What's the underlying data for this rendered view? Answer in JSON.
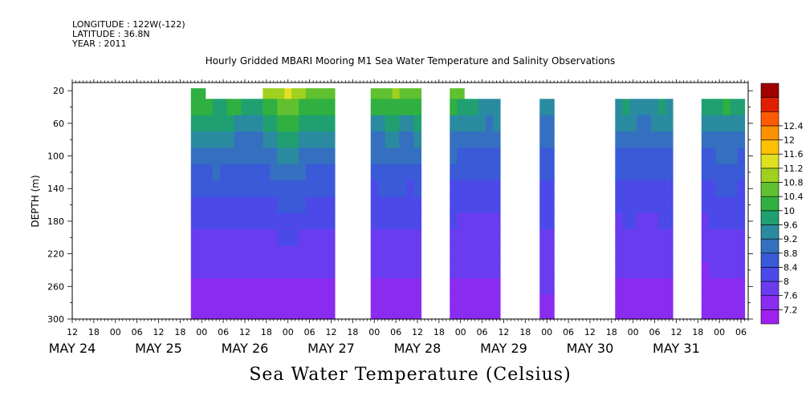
{
  "header": {
    "longitude": "LONGITUDE : 122W(-122)",
    "latitude": "LATITUDE : 36.8N",
    "year": "YEAR : 2011"
  },
  "chart_data": {
    "type": "heatmap",
    "title": "Hourly Gridded MBARI Mooring M1 Sea Water Temperature and Salinity Observations",
    "xlabel": "Sea Water Temperature (Celsius)",
    "ylabel": "DEPTH (m)",
    "x_hour_range": [
      -12,
      176
    ],
    "x_note": "x values are hours relative to 2011-05-24 00:00",
    "ylim": [
      300,
      10
    ],
    "y_ticks": [
      20,
      60,
      100,
      140,
      180,
      220,
      260,
      300
    ],
    "x_hour_ticks": [
      "12",
      "18",
      "00",
      "06",
      "12",
      "18",
      "00",
      "06",
      "12",
      "18",
      "00",
      "06",
      "12",
      "18",
      "00",
      "06",
      "12",
      "18",
      "00",
      "06",
      "12",
      "18",
      "00",
      "06",
      "12",
      "18",
      "00",
      "06",
      "12",
      "18",
      "00",
      "06"
    ],
    "day_labels": [
      "MAY 24",
      "MAY 25",
      "MAY 26",
      "MAY 27",
      "MAY 28",
      "MAY 29",
      "MAY 30",
      "MAY 31"
    ],
    "colorbar": {
      "levels": [
        7.2,
        7.6,
        8,
        8.4,
        8.8,
        9.2,
        9.6,
        10,
        10.4,
        10.8,
        11.2,
        11.6,
        12,
        12.4
      ],
      "colors": [
        "#a020f0",
        "#8a2cf0",
        "#6a3cf0",
        "#4b49e8",
        "#3a5ad8",
        "#3570c0",
        "#2a8aa0",
        "#20a070",
        "#30b040",
        "#60c030",
        "#a0d020",
        "#e0e020",
        "#ffc000",
        "#ff9000",
        "#ff5a00",
        "#e02000",
        "#a00000"
      ]
    },
    "profiles": [
      {
        "hours": [
          22,
          24,
          26,
          28,
          30,
          32,
          34,
          36,
          38,
          40
        ],
        "depths": [
          20,
          40,
          60,
          80,
          100,
          120,
          140,
          160,
          180,
          200,
          220,
          240,
          260,
          280,
          300
        ],
        "temps": [
          [
            10.3,
            10.1,
            9.6,
            9.2,
            8.9,
            8.6,
            8.4,
            8.2,
            8.0,
            7.9,
            7.7,
            7.6,
            7.5,
            7.4,
            7.3
          ],
          [
            10.3,
            10.1,
            9.7,
            9.3,
            8.9,
            8.7,
            8.5,
            8.3,
            8.0,
            7.9,
            7.8,
            7.6,
            7.5,
            7.4,
            7.3
          ],
          [
            null,
            10.0,
            9.7,
            9.3,
            9.0,
            8.7,
            8.5,
            8.3,
            8.1,
            7.9,
            7.8,
            7.6,
            7.5,
            7.4,
            7.3
          ],
          [
            null,
            9.9,
            9.6,
            9.3,
            9.0,
            8.8,
            8.6,
            8.3,
            8.1,
            7.9,
            7.8,
            7.6,
            7.5,
            7.3,
            7.2
          ],
          [
            null,
            9.9,
            9.6,
            9.2,
            8.9,
            8.7,
            8.5,
            8.2,
            8.0,
            7.9,
            7.7,
            7.6,
            7.5,
            7.4,
            7.3
          ],
          [
            null,
            10.0,
            9.6,
            9.2,
            8.9,
            8.6,
            8.4,
            8.2,
            8.0,
            7.9,
            7.7,
            7.6,
            7.5,
            7.4,
            7.3
          ],
          [
            null,
            10.0,
            9.5,
            9.1,
            8.8,
            8.6,
            8.4,
            8.2,
            8.0,
            7.8,
            7.7,
            7.6,
            7.5,
            7.4,
            7.3
          ],
          [
            null,
            9.9,
            9.5,
            9.1,
            8.8,
            8.6,
            8.4,
            8.2,
            8.0,
            7.8,
            7.7,
            7.6,
            7.5,
            7.4,
            7.3
          ],
          [
            null,
            9.9,
            9.5,
            9.1,
            8.8,
            8.6,
            8.4,
            8.2,
            8.0,
            7.9,
            7.7,
            7.6,
            7.5,
            7.4,
            7.3
          ],
          [
            null,
            9.9,
            9.5,
            9.1,
            8.8,
            8.6,
            8.4,
            8.2,
            8.0,
            7.9,
            7.7,
            7.6,
            7.5,
            7.4,
            7.3
          ]
        ]
      },
      {
        "hours": [
          42,
          44,
          46,
          48,
          50,
          52,
          54,
          56,
          58,
          60
        ],
        "depths": [
          20,
          40,
          60,
          80,
          100,
          120,
          140,
          160,
          180,
          200,
          220,
          240,
          260,
          280,
          300
        ],
        "temps": [
          [
            10.8,
            10.2,
            9.7,
            9.3,
            9.0,
            8.7,
            8.5,
            8.3,
            8.1,
            7.9,
            7.7,
            7.6,
            7.5,
            7.4,
            7.3
          ],
          [
            10.9,
            10.3,
            9.8,
            9.4,
            9.1,
            8.8,
            8.6,
            8.3,
            8.1,
            7.9,
            7.8,
            7.6,
            7.5,
            7.4,
            7.3
          ],
          [
            11.0,
            10.5,
            10.0,
            9.6,
            9.2,
            8.9,
            8.6,
            8.4,
            8.1,
            8.0,
            7.8,
            7.6,
            7.5,
            7.4,
            7.3
          ],
          [
            11.2,
            10.7,
            10.2,
            9.8,
            9.4,
            9.0,
            8.7,
            8.5,
            8.2,
            8.0,
            7.8,
            7.7,
            7.5,
            7.4,
            7.2
          ],
          [
            11.0,
            10.6,
            10.1,
            9.7,
            9.3,
            9.0,
            8.7,
            8.4,
            8.2,
            8.0,
            7.8,
            7.7,
            7.5,
            7.4,
            7.3
          ],
          [
            10.8,
            10.3,
            9.9,
            9.5,
            9.1,
            8.8,
            8.6,
            8.4,
            8.1,
            7.9,
            7.8,
            7.6,
            7.5,
            7.4,
            7.3
          ],
          [
            10.6,
            10.1,
            9.7,
            9.3,
            9.0,
            8.7,
            8.5,
            8.3,
            8.1,
            7.9,
            7.7,
            7.6,
            7.5,
            7.4,
            7.3
          ],
          [
            10.6,
            10.1,
            9.6,
            9.2,
            8.9,
            8.7,
            8.5,
            8.3,
            8.1,
            7.9,
            7.7,
            7.6,
            7.5,
            7.4,
            7.3
          ],
          [
            10.7,
            10.1,
            9.6,
            9.2,
            8.9,
            8.7,
            8.5,
            8.3,
            8.1,
            7.9,
            7.7,
            7.6,
            7.5,
            7.4,
            7.3
          ],
          [
            10.7,
            10.2,
            9.7,
            9.3,
            9.0,
            8.7,
            8.5,
            8.3,
            8.1,
            7.9,
            7.7,
            7.6,
            7.5,
            7.4,
            7.3
          ]
        ]
      },
      {
        "hours": [
          72,
          74,
          76,
          78,
          80,
          82,
          84
        ],
        "depths": [
          20,
          40,
          60,
          80,
          100,
          120,
          140,
          160,
          180,
          200,
          220,
          240,
          260,
          280,
          300
        ],
        "temps": [
          [
            10.6,
            10.0,
            9.5,
            9.1,
            8.8,
            8.5,
            8.3,
            8.1,
            8.0,
            7.8,
            7.7,
            7.6,
            7.5,
            7.4,
            7.3
          ],
          [
            10.6,
            10.0,
            9.5,
            9.1,
            8.8,
            8.6,
            8.4,
            8.2,
            8.0,
            7.9,
            7.7,
            7.6,
            7.5,
            7.4,
            7.3
          ],
          [
            10.7,
            10.1,
            9.6,
            9.2,
            8.9,
            8.6,
            8.4,
            8.2,
            8.0,
            7.9,
            7.7,
            7.6,
            7.5,
            7.4,
            7.3
          ],
          [
            10.8,
            10.1,
            9.6,
            9.2,
            8.9,
            8.6,
            8.4,
            8.2,
            8.0,
            7.9,
            7.7,
            7.6,
            7.5,
            7.4,
            7.3
          ],
          [
            10.7,
            10.0,
            9.5,
            9.1,
            8.8,
            8.6,
            8.4,
            8.2,
            8.0,
            7.8,
            7.7,
            7.6,
            7.5,
            7.4,
            7.3
          ],
          [
            10.6,
            10.0,
            9.5,
            9.1,
            8.8,
            8.5,
            8.3,
            8.1,
            8.0,
            7.8,
            7.7,
            7.6,
            7.5,
            7.4,
            7.3
          ],
          [
            10.7,
            10.1,
            9.6,
            9.2,
            8.9,
            8.6,
            8.4,
            8.2,
            8.0,
            7.9,
            7.7,
            7.6,
            7.5,
            7.4,
            7.3
          ]
        ]
      },
      {
        "hours": [
          94,
          96,
          98,
          100,
          102,
          104,
          106
        ],
        "depths": [
          20,
          40,
          60,
          80,
          100,
          120,
          140,
          160,
          180,
          200,
          220,
          240,
          260,
          280,
          300
        ],
        "temps": [
          [
            10.6,
            10.0,
            9.5,
            9.1,
            8.8,
            8.5,
            8.3,
            8.1,
            8.0,
            7.8,
            7.7,
            7.6,
            7.5,
            7.4,
            7.3
          ],
          [
            10.5,
            9.9,
            9.4,
            9.0,
            8.7,
            8.5,
            8.3,
            8.1,
            7.9,
            7.8,
            7.7,
            7.6,
            7.5,
            7.4,
            7.3
          ],
          [
            null,
            9.7,
            9.3,
            9.0,
            8.7,
            8.5,
            8.3,
            8.1,
            7.9,
            7.8,
            7.7,
            7.6,
            7.5,
            7.4,
            7.3
          ],
          [
            null,
            9.6,
            9.2,
            8.9,
            8.7,
            8.5,
            8.3,
            8.1,
            7.9,
            7.8,
            7.7,
            7.6,
            7.5,
            7.4,
            7.2
          ],
          [
            null,
            9.5,
            9.2,
            8.9,
            8.7,
            8.5,
            8.3,
            8.1,
            7.9,
            7.8,
            7.7,
            7.6,
            7.5,
            7.4,
            7.3
          ],
          [
            null,
            9.5,
            9.1,
            8.9,
            8.7,
            8.5,
            8.3,
            8.1,
            7.9,
            7.8,
            7.7,
            7.6,
            7.5,
            7.4,
            7.3
          ],
          [
            null,
            9.5,
            9.2,
            8.9,
            8.7,
            8.5,
            8.3,
            8.1,
            7.9,
            7.8,
            7.7,
            7.6,
            7.5,
            7.4,
            7.3
          ]
        ]
      },
      {
        "hours": [
          119,
          121
        ],
        "depths": [
          20,
          40,
          60,
          80,
          100,
          120,
          140,
          160,
          180,
          200,
          220,
          240,
          260,
          280,
          300
        ],
        "temps": [
          [
            null,
            9.4,
            9.1,
            8.8,
            8.6,
            8.4,
            8.3,
            8.1,
            8.0,
            7.9,
            7.8,
            7.7,
            7.6,
            7.4,
            7.3
          ],
          [
            null,
            9.4,
            9.1,
            8.8,
            8.6,
            8.4,
            8.3,
            8.1,
            8.0,
            7.9,
            7.8,
            7.7,
            7.6,
            7.4,
            7.3
          ]
        ]
      },
      {
        "hours": [
          140,
          142,
          144,
          146,
          148,
          150,
          152,
          154
        ],
        "depths": [
          20,
          40,
          60,
          80,
          100,
          120,
          140,
          160,
          180,
          200,
          220,
          240,
          260,
          280,
          300
        ],
        "temps": [
          [
            null,
            9.5,
            9.2,
            8.9,
            8.7,
            8.5,
            8.3,
            8.1,
            7.9,
            7.8,
            7.7,
            7.6,
            7.5,
            7.4,
            7.3
          ],
          [
            null,
            9.6,
            9.2,
            8.9,
            8.7,
            8.5,
            8.3,
            8.1,
            8.0,
            7.8,
            7.7,
            7.6,
            7.5,
            7.4,
            7.3
          ],
          [
            null,
            9.5,
            9.2,
            8.9,
            8.7,
            8.5,
            8.3,
            8.1,
            8.0,
            7.8,
            7.7,
            7.6,
            7.5,
            7.4,
            7.3
          ],
          [
            null,
            9.5,
            9.1,
            8.9,
            8.7,
            8.5,
            8.3,
            8.1,
            7.9,
            7.8,
            7.7,
            7.6,
            7.5,
            7.4,
            7.3
          ],
          [
            null,
            9.4,
            9.1,
            8.8,
            8.6,
            8.4,
            8.2,
            8.1,
            7.9,
            7.8,
            7.7,
            7.6,
            7.5,
            7.4,
            7.3
          ],
          [
            null,
            9.5,
            9.2,
            8.9,
            8.7,
            8.5,
            8.3,
            8.1,
            7.9,
            7.8,
            7.7,
            7.6,
            7.5,
            7.4,
            7.2
          ],
          [
            null,
            9.6,
            9.2,
            8.9,
            8.7,
            8.5,
            8.3,
            8.1,
            8.0,
            7.8,
            7.7,
            7.6,
            7.5,
            7.4,
            7.3
          ],
          [
            null,
            9.5,
            9.2,
            8.9,
            8.7,
            8.5,
            8.3,
            8.1,
            8.0,
            7.8,
            7.7,
            7.6,
            7.5,
            7.4,
            7.3
          ]
        ]
      },
      {
        "hours": [
          164,
          166,
          168,
          170,
          172,
          174
        ],
        "depths": [
          20,
          40,
          60,
          80,
          100,
          120,
          140,
          160,
          180,
          200,
          220,
          240,
          260,
          280,
          300
        ],
        "temps": [
          [
            null,
            9.6,
            9.2,
            8.9,
            8.7,
            8.5,
            8.3,
            8.1,
            7.9,
            7.8,
            7.6,
            7.5,
            7.4,
            7.3,
            7.3
          ],
          [
            null,
            9.7,
            9.3,
            9.0,
            8.7,
            8.5,
            8.3,
            8.1,
            8.0,
            7.8,
            7.7,
            7.6,
            7.5,
            7.4,
            7.3
          ],
          [
            null,
            9.8,
            9.4,
            9.0,
            8.8,
            8.6,
            8.4,
            8.2,
            8.0,
            7.9,
            7.7,
            7.6,
            7.5,
            7.4,
            7.3
          ],
          [
            null,
            10.0,
            9.5,
            9.1,
            8.8,
            8.6,
            8.4,
            8.2,
            8.0,
            7.9,
            7.7,
            7.6,
            7.5,
            7.4,
            7.3
          ],
          [
            null,
            9.8,
            9.4,
            9.0,
            8.8,
            8.6,
            8.4,
            8.2,
            8.0,
            7.9,
            7.7,
            7.6,
            7.5,
            7.4,
            7.3
          ],
          [
            null,
            9.6,
            9.2,
            8.9,
            8.7,
            8.5,
            8.3,
            8.1,
            8.0,
            7.8,
            7.7,
            7.6,
            7.5,
            7.4,
            7.3
          ]
        ]
      }
    ]
  }
}
